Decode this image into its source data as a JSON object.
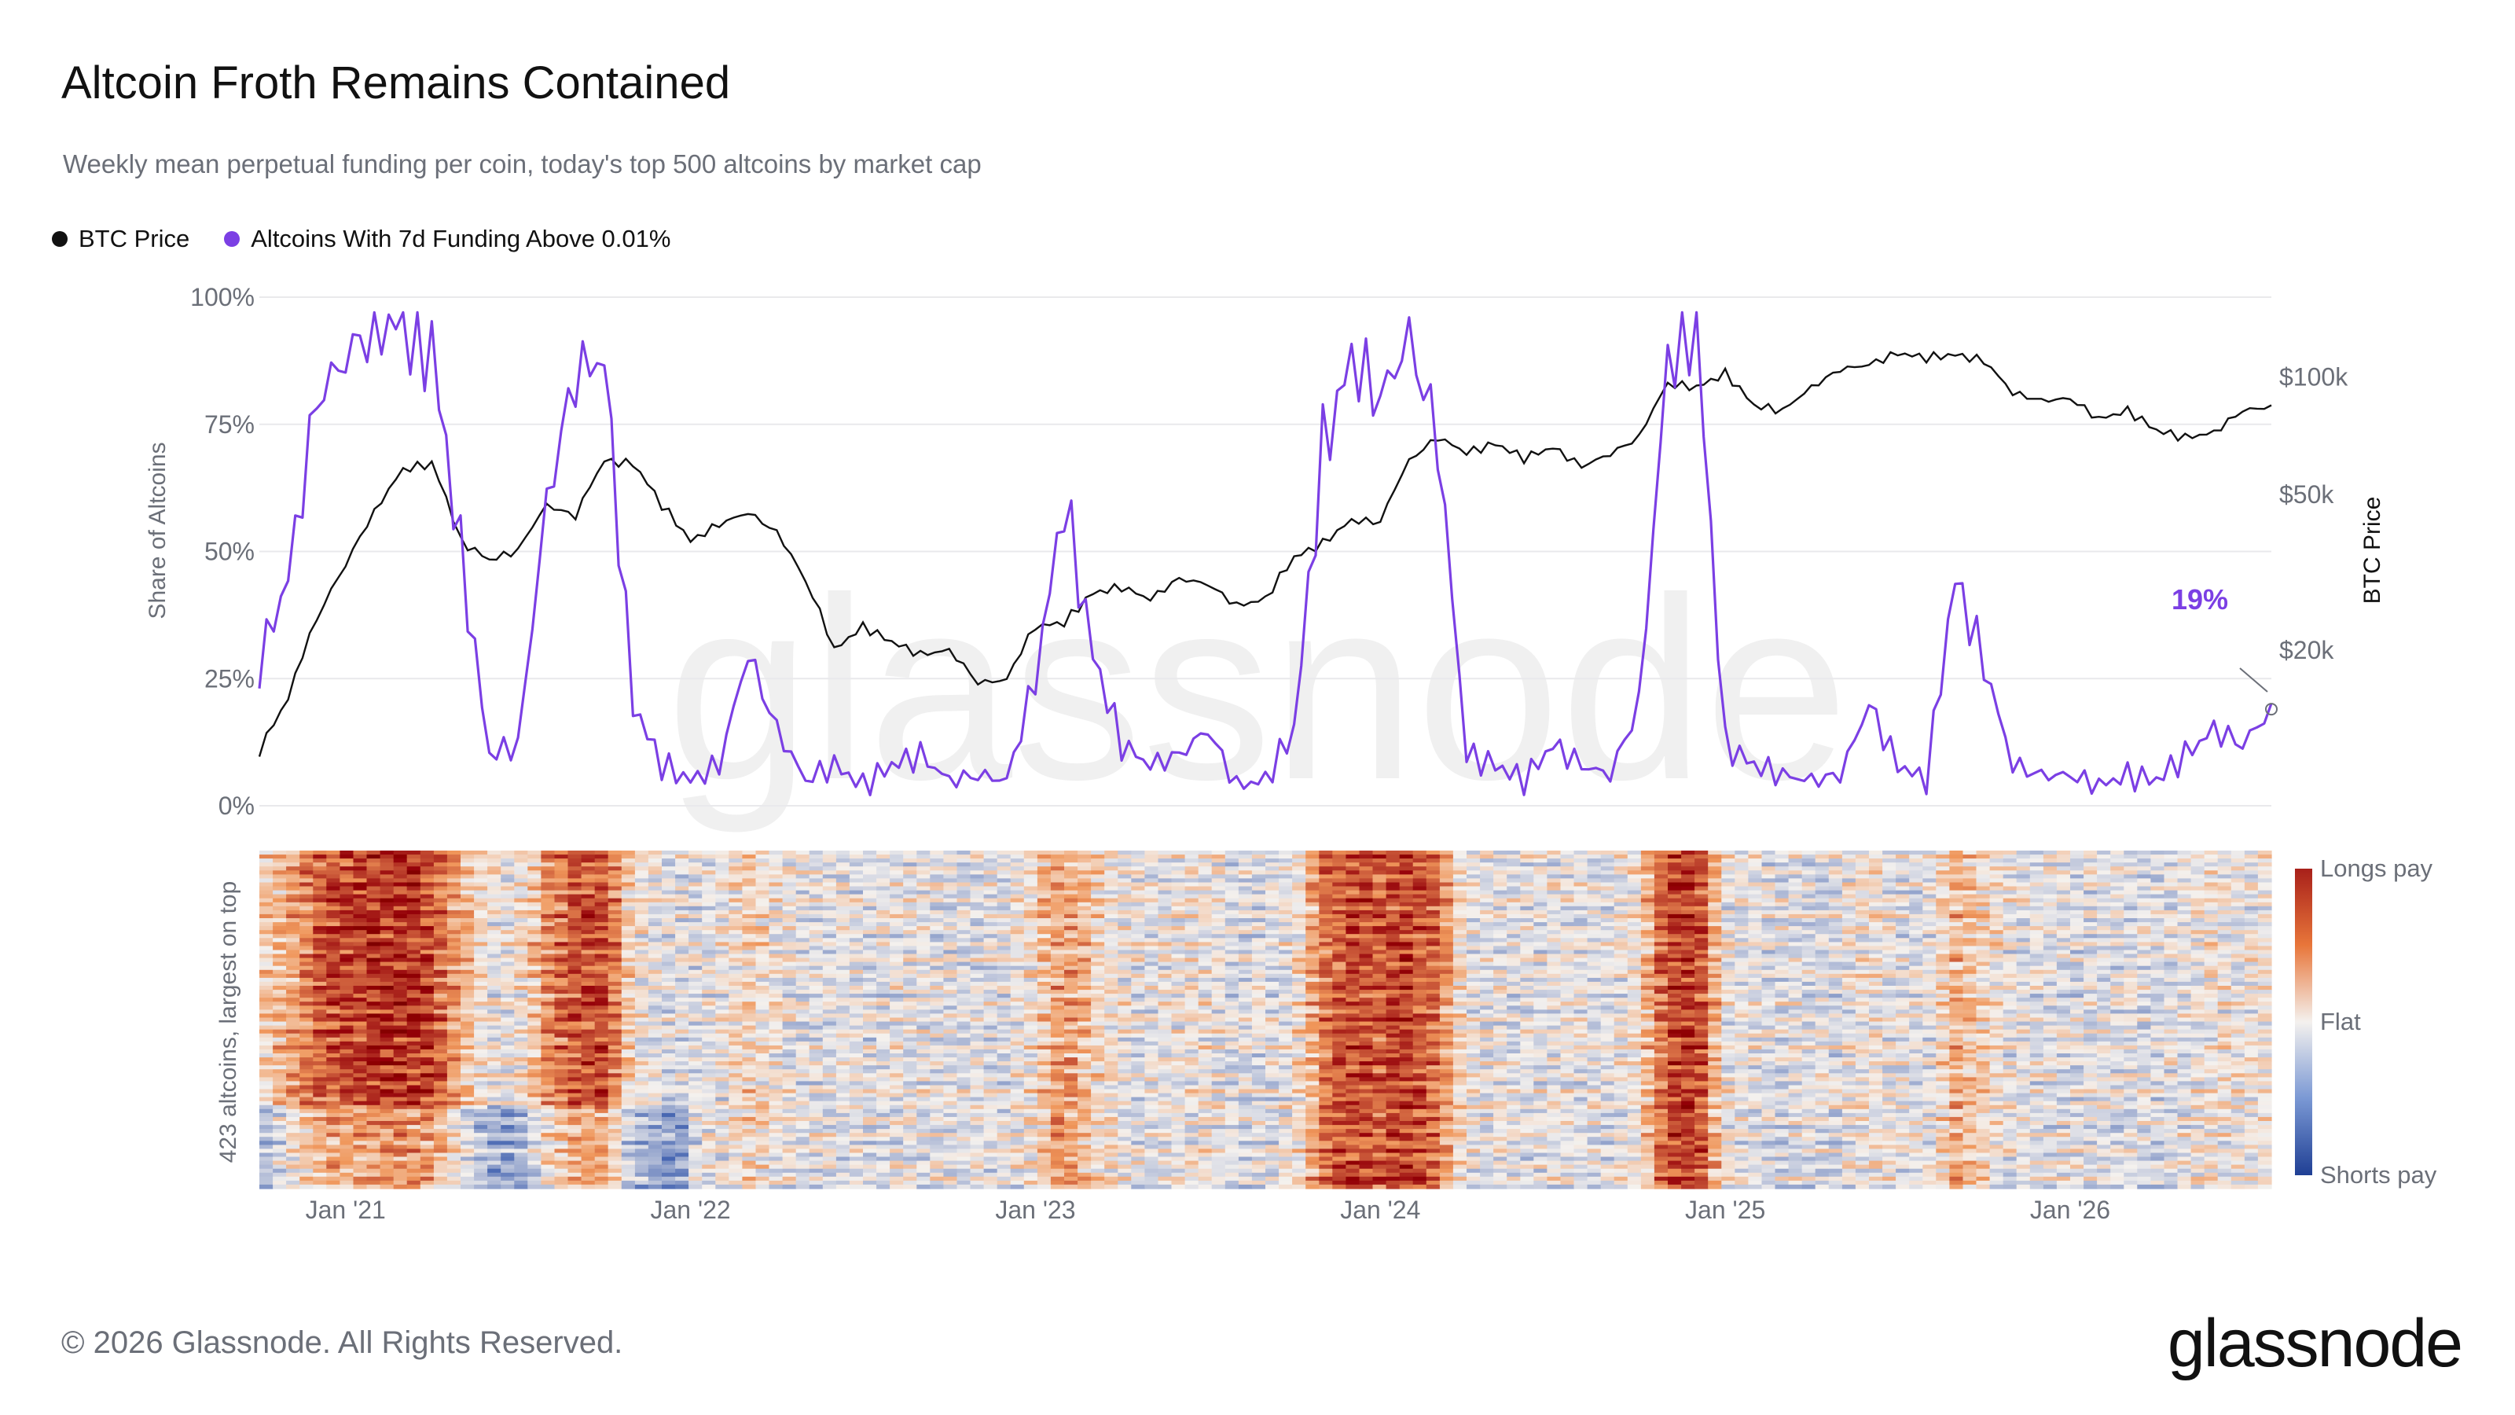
{
  "title": "Altcoin Froth Remains Contained",
  "subtitle": "Weekly mean perpetual funding per coin, today's top 500 altcoins by market cap",
  "legend": [
    {
      "label": "BTC Price",
      "color": "#111111"
    },
    {
      "label": "Altcoins With 7d Funding Above 0.01%",
      "color": "#7b3fe4"
    }
  ],
  "footer": "© 2026 Glassnode. All Rights Reserved.",
  "logo": "glassnode",
  "watermark": "glassnode",
  "colors": {
    "btc": "#111111",
    "share": "#7b3fe4",
    "longs": "#a8201a",
    "flat": "#f4f1ee",
    "shorts": "#2a4fa8",
    "grid": "#e9e9ec",
    "axis_text": "#6b6f78"
  },
  "chart_data": [
    {
      "type": "line",
      "title": "Altcoin Froth Remains Contained",
      "ylabel": "Share of Altcoins",
      "y2label": "BTC Price",
      "y_ticks": [
        "100%",
        "75%",
        "50%",
        "25%",
        "0%"
      ],
      "y_tick_values": [
        100,
        75,
        50,
        25,
        0
      ],
      "y2_ticks": [
        "$100k",
        "$50k",
        "$20k"
      ],
      "y2_tick_values": [
        100000,
        50000,
        20000
      ],
      "y2_scale": "log",
      "ylim": [
        0,
        100
      ],
      "grid": true,
      "annotation": {
        "text": "19%",
        "x": "2026-08",
        "y": 19
      },
      "x_tick_labels": [
        "Jan '21",
        "Jan '22",
        "Jan '23",
        "Jan '24",
        "Jan '25",
        "Jan '26"
      ],
      "series": [
        {
          "name": "Altcoins With 7d Funding Above 0.01%",
          "axis": "left",
          "x": [
            "2020-10",
            "2020-11",
            "2020-12",
            "2021-01",
            "2021-02",
            "2021-03",
            "2021-04",
            "2021-05",
            "2021-06",
            "2021-07",
            "2021-08",
            "2021-09",
            "2021-10",
            "2021-11",
            "2021-12",
            "2022-01",
            "2022-02",
            "2022-03",
            "2022-04",
            "2022-05",
            "2022-06",
            "2022-07",
            "2022-08",
            "2022-09",
            "2022-10",
            "2022-11",
            "2022-12",
            "2023-01",
            "2023-02",
            "2023-03",
            "2023-04",
            "2023-05",
            "2023-06",
            "2023-07",
            "2023-08",
            "2023-09",
            "2023-10",
            "2023-11",
            "2023-12",
            "2024-01",
            "2024-02",
            "2024-03",
            "2024-04",
            "2024-05",
            "2024-06",
            "2024-07",
            "2024-08",
            "2024-09",
            "2024-10",
            "2024-11",
            "2024-12",
            "2025-01",
            "2025-02",
            "2025-03",
            "2025-04",
            "2025-05",
            "2025-06",
            "2025-07",
            "2025-08",
            "2025-09",
            "2025-10",
            "2025-11",
            "2025-12",
            "2026-01",
            "2026-02",
            "2026-03",
            "2026-04",
            "2026-05",
            "2026-06",
            "2026-07",
            "2026-08"
          ],
          "values": [
            28,
            45,
            80,
            88,
            95,
            94,
            90,
            50,
            10,
            12,
            60,
            85,
            88,
            20,
            8,
            5,
            8,
            30,
            15,
            5,
            8,
            4,
            8,
            10,
            5,
            6,
            5,
            25,
            60,
            30,
            12,
            8,
            10,
            15,
            4,
            5,
            15,
            70,
            88,
            80,
            92,
            72,
            10,
            8,
            5,
            12,
            8,
            6,
            20,
            88,
            95,
            12,
            8,
            6,
            5,
            6,
            20,
            8,
            5,
            45,
            28,
            8,
            6,
            6,
            4,
            6,
            5,
            10,
            15,
            12,
            19
          ]
        },
        {
          "name": "BTC Price",
          "axis": "right",
          "x": [
            "2020-10",
            "2020-11",
            "2020-12",
            "2021-01",
            "2021-02",
            "2021-03",
            "2021-04",
            "2021-05",
            "2021-06",
            "2021-07",
            "2021-08",
            "2021-09",
            "2021-10",
            "2021-11",
            "2021-12",
            "2022-01",
            "2022-02",
            "2022-03",
            "2022-04",
            "2022-05",
            "2022-06",
            "2022-07",
            "2022-08",
            "2022-09",
            "2022-10",
            "2022-11",
            "2022-12",
            "2023-01",
            "2023-02",
            "2023-03",
            "2023-04",
            "2023-05",
            "2023-06",
            "2023-07",
            "2023-08",
            "2023-09",
            "2023-10",
            "2023-11",
            "2023-12",
            "2024-01",
            "2024-02",
            "2024-03",
            "2024-04",
            "2024-05",
            "2024-06",
            "2024-07",
            "2024-08",
            "2024-09",
            "2024-10",
            "2024-11",
            "2024-12",
            "2025-01",
            "2025-02",
            "2025-03",
            "2025-04",
            "2025-05",
            "2025-06",
            "2025-07",
            "2025-08",
            "2025-09",
            "2025-10",
            "2025-11",
            "2025-12",
            "2026-01",
            "2026-02",
            "2026-03",
            "2026-04",
            "2026-05",
            "2026-06",
            "2026-07",
            "2026-08"
          ],
          "values": [
            11000,
            15000,
            24000,
            33000,
            45000,
            58000,
            60000,
            38000,
            34000,
            36000,
            47000,
            44000,
            61000,
            60000,
            47000,
            38000,
            42000,
            45000,
            40000,
            30000,
            20000,
            23000,
            21000,
            19500,
            20000,
            16500,
            16800,
            23000,
            23500,
            28000,
            29000,
            27000,
            30500,
            29500,
            26000,
            27000,
            34500,
            37500,
            43000,
            42500,
            61000,
            70000,
            64000,
            67500,
            62000,
            66000,
            59000,
            63500,
            70000,
            96000,
            94000,
            102000,
            84500,
            82000,
            94000,
            104500,
            107500,
            115000,
            112000,
            114000,
            110000,
            91000,
            87000,
            88000,
            78000,
            82000,
            73000,
            70000,
            72000,
            82000,
            84000
          ]
        }
      ]
    },
    {
      "type": "heatmap",
      "ylabel": "423 altcoins, largest on top",
      "rows": 423,
      "color_scale": [
        "Longs pay",
        "Flat",
        "Shorts pay"
      ],
      "x_tick_labels": [
        "Jan '21",
        "Jan '22",
        "Jan '23",
        "Jan '24",
        "Jan '25",
        "Jan '26"
      ]
    }
  ]
}
